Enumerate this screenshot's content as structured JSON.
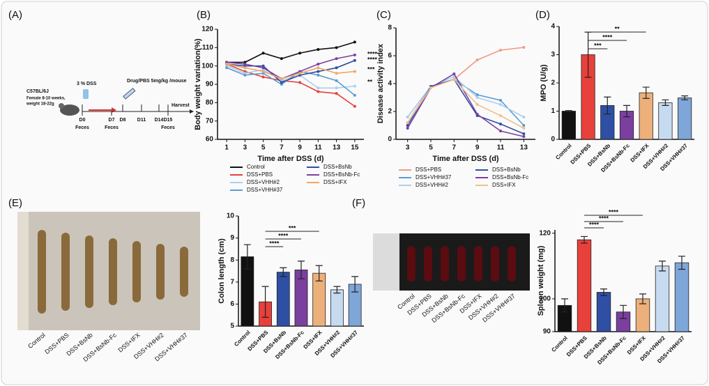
{
  "schematic": {
    "panel": "(A)",
    "strain": "C57BL/6J",
    "mice": "Female 8-10 weeks,",
    "weight": "weight 18-22g",
    "dss": "3 % DSS",
    "drug": "Drug/PBS 5mg/kg /mouse",
    "harvest": "Harvest",
    "days": [
      {
        "day": "D0",
        "note": "Feces"
      },
      {
        "day": "D7",
        "note": "Feces"
      },
      {
        "day": "D8"
      },
      {
        "day": "D11"
      },
      {
        "day": "D14"
      },
      {
        "day": "D15",
        "note": "Feces"
      }
    ]
  },
  "photos": [
    {
      "labels": [
        "Control",
        "DSS+PBS",
        "DSS+BsNb",
        "DSS+BsNb-Fc",
        "DSS+IFX",
        "DSS+VHH#2",
        "DSS+VHH#37"
      ]
    },
    {
      "labels": [
        "Control",
        "DSS+PBS",
        "DSS+BsNb",
        "DSS+BsNb-Fc",
        "DSS+IFX",
        "DSS+VHH#2",
        "DSS+VHH#37"
      ]
    }
  ],
  "chart_data": [
    {
      "type": "line",
      "panel": "(B)",
      "y_label": "Body weight variation(%)",
      "x_label": "Time after DSS (d)",
      "x": [
        1,
        3,
        5,
        7,
        9,
        11,
        13,
        15
      ],
      "xlim": [
        0,
        16
      ],
      "xticks": [
        1,
        3,
        5,
        7,
        9,
        11,
        13,
        15
      ],
      "ylim": [
        60,
        120
      ],
      "yticks": [
        60,
        70,
        80,
        90,
        100,
        110,
        120
      ],
      "series": [
        {
          "name": "Control",
          "color": "#111111",
          "values": [
            102,
            102,
            107,
            104,
            107,
            109,
            110,
            113
          ]
        },
        {
          "name": "DSS+PBS",
          "color": "#e8403a",
          "values": [
            101,
            97,
            94,
            92,
            91,
            86,
            85,
            78
          ]
        },
        {
          "name": "DSS+VHH#2",
          "color": "#a9d0ef",
          "values": [
            100,
            96,
            98,
            92,
            95,
            88,
            88,
            89
          ]
        },
        {
          "name": "DSS+VHH#37",
          "color": "#5b9bd5",
          "values": [
            99,
            95,
            96,
            90,
            97,
            95,
            92,
            84
          ]
        },
        {
          "name": "DSS+BsNb",
          "color": "#2e4fa3",
          "values": [
            101,
            100,
            100,
            91,
            95,
            97,
            99,
            103
          ]
        },
        {
          "name": "DSS+BsNb-Fc",
          "color": "#7b3fa0",
          "values": [
            102,
            101,
            99,
            93,
            97,
            101,
            104,
            106
          ]
        },
        {
          "name": "DSS+IFX",
          "color": "#f0a860",
          "values": [
            101,
            99,
            97,
            93,
            96,
            99,
            96,
            97
          ]
        }
      ],
      "annotations": [
        {
          "text": "****",
          "color": "#7b3fa0"
        },
        {
          "text": "****",
          "color": "#2e4fa3"
        },
        {
          "text": "***",
          "color": "#f0a860"
        },
        {
          "text": "**",
          "color": "#5b9bd5"
        }
      ]
    },
    {
      "type": "line",
      "panel": "(C)",
      "y_label": "Disease activity index",
      "x_label": "Time after DSS (d)",
      "x": [
        3,
        5,
        7,
        9,
        11,
        13
      ],
      "xlim": [
        2,
        14
      ],
      "xticks": [
        3,
        5,
        7,
        9,
        11,
        13
      ],
      "ylim": [
        0,
        8
      ],
      "yticks": [
        0,
        2,
        4,
        6,
        8
      ],
      "series": [
        {
          "name": "DSS+PBS",
          "color": "#f29a82",
          "values": [
            1.2,
            3.8,
            4.3,
            5.7,
            6.4,
            6.6
          ]
        },
        {
          "name": "DSS+VHH#37",
          "color": "#5b9bd5",
          "values": [
            1.6,
            3.8,
            4.3,
            3.2,
            2.8,
            1.0
          ]
        },
        {
          "name": "DSS+VHH#2",
          "color": "#a9d0ef",
          "values": [
            1.6,
            3.8,
            4.5,
            3.0,
            2.5,
            1.6
          ]
        },
        {
          "name": "DSS+BsNb",
          "color": "#2e4fa3",
          "values": [
            1.0,
            3.8,
            4.3,
            1.7,
            1.1,
            0.4
          ]
        },
        {
          "name": "DSS+BsNb-Fc",
          "color": "#7b3fa0",
          "values": [
            0.8,
            3.7,
            4.7,
            1.8,
            0.6,
            0.2
          ]
        },
        {
          "name": "DSS+IFX",
          "color": "#f0c090",
          "values": [
            1.2,
            3.7,
            4.3,
            2.5,
            1.7,
            0.8
          ]
        }
      ]
    },
    {
      "type": "bar",
      "panel": "(D)",
      "y_label": "MPO (U/g)",
      "categories": [
        "Control",
        "DSS+PBS",
        "DSS+BsNb",
        "DSS+BsNb-Fc",
        "DSS+IFX",
        "DSS+VHH#2",
        "DSS+VHH#37"
      ],
      "colors": [
        "#111111",
        "#e8403a",
        "#2e4fa3",
        "#7b3fa0",
        "#eeb07a",
        "#c6dbef",
        "#7ea6d8"
      ],
      "values": [
        1.0,
        3.0,
        1.2,
        1.0,
        1.65,
        1.3,
        1.47
      ],
      "errors": [
        0.02,
        0.8,
        0.3,
        0.2,
        0.2,
        0.1,
        0.07
      ],
      "ylim": [
        0,
        4
      ],
      "yticks": [
        0,
        1,
        2,
        3,
        4
      ],
      "brackets": [
        {
          "label": "***",
          "from": "DSS+PBS",
          "to": "DSS+BsNb"
        },
        {
          "label": "****",
          "from": "DSS+PBS",
          "to": "DSS+BsNb-Fc"
        },
        {
          "label": "**",
          "from": "DSS+PBS",
          "to": "DSS+IFX"
        }
      ]
    },
    {
      "type": "bar",
      "panel": "(E)",
      "y_label": "Colon length (cm)",
      "categories": [
        "Control",
        "DSS+PBS",
        "DSS+BsNb",
        "DSS+BsNb-Fc",
        "DSS+IFX",
        "DSS+VHH#2",
        "DSS+VHH#37"
      ],
      "colors": [
        "#111111",
        "#e8403a",
        "#2e4fa3",
        "#7b3fa0",
        "#eeb07a",
        "#c6dbef",
        "#7ea6d8"
      ],
      "values": [
        8.15,
        6.1,
        7.45,
        7.55,
        7.4,
        6.65,
        6.9
      ],
      "errors": [
        0.55,
        0.7,
        0.2,
        0.4,
        0.35,
        0.15,
        0.35
      ],
      "ylim": [
        5,
        10
      ],
      "yticks": [
        5,
        6,
        7,
        8,
        9,
        10
      ],
      "brackets": [
        {
          "label": "****",
          "from": "DSS+PBS",
          "to": "DSS+BsNb"
        },
        {
          "label": "****",
          "from": "DSS+PBS",
          "to": "DSS+BsNb-Fc"
        },
        {
          "label": "***",
          "from": "DSS+PBS",
          "to": "DSS+IFX"
        }
      ]
    },
    {
      "type": "bar",
      "panel": "(F)",
      "y_label": "Spleen weight (mg)",
      "categories": [
        "Control",
        "DSS+PBS",
        "DSS+BsNb",
        "DSS+BsNb-Fc",
        "DSS+IFX",
        "DSS+VHH#2",
        "DSS+VHH#37"
      ],
      "colors": [
        "#111111",
        "#e8403a",
        "#2e4fa3",
        "#7b3fa0",
        "#eeb07a",
        "#c6dbef",
        "#7ea6d8"
      ],
      "values": [
        98,
        118,
        102,
        96,
        100,
        110,
        111
      ],
      "errors": [
        2,
        1,
        1,
        2,
        1.5,
        1.5,
        2
      ],
      "ylim": [
        90,
        121
      ],
      "yticks": [
        90,
        100,
        120
      ],
      "brackets": [
        {
          "label": "****",
          "from": "DSS+PBS",
          "to": "DSS+BsNb"
        },
        {
          "label": "****",
          "from": "DSS+PBS",
          "to": "DSS+BsNb-Fc"
        },
        {
          "label": "****",
          "from": "DSS+PBS",
          "to": "DSS+IFX"
        }
      ]
    }
  ]
}
